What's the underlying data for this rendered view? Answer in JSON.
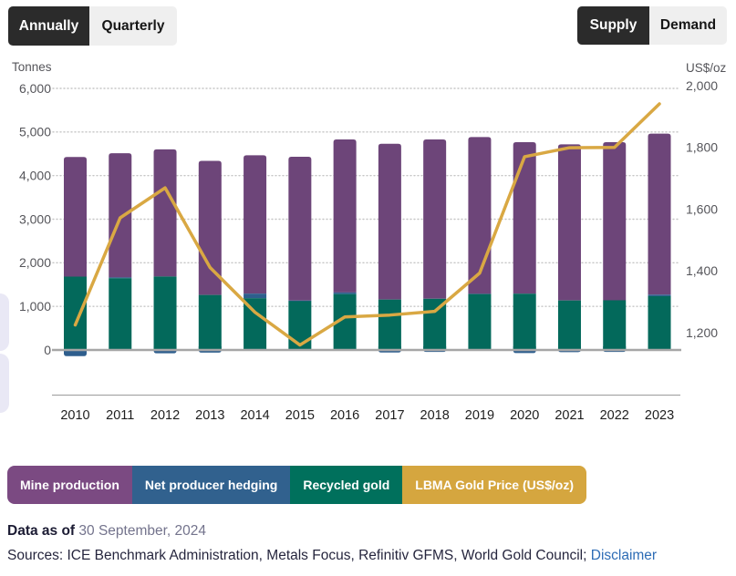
{
  "toggles": {
    "frequency": {
      "options": [
        {
          "label": "Annually",
          "selected": true
        },
        {
          "label": "Quarterly",
          "selected": false
        }
      ]
    },
    "flow": {
      "options": [
        {
          "label": "Supply",
          "selected": true
        },
        {
          "label": "Demand",
          "selected": false
        }
      ]
    }
  },
  "chart_data": {
    "type": "stacked-bar+line",
    "categories": [
      "2010",
      "2011",
      "2012",
      "2013",
      "2014",
      "2015",
      "2016",
      "2017",
      "2018",
      "2019",
      "2020",
      "2021",
      "2022",
      "2023"
    ],
    "series": [
      {
        "name": "Mine production",
        "type": "bar",
        "color": "#6D4579",
        "values": [
          2744,
          2847,
          2916,
          3076,
          3172,
          3297,
          3510,
          3573,
          3655,
          3595,
          3475,
          3581,
          3627,
          3694
        ]
      },
      {
        "name": "Net producer hedging",
        "type": "bar",
        "color": "#2E5E8D",
        "values": [
          -109,
          18,
          -45,
          -28,
          105,
          13,
          38,
          -26,
          -13,
          6,
          -39,
          -18,
          -14,
          35
        ]
      },
      {
        "name": "Recycled gold",
        "type": "bar",
        "color": "#03695B",
        "values": [
          1683,
          1647,
          1685,
          1262,
          1188,
          1121,
          1282,
          1157,
          1175,
          1282,
          1291,
          1136,
          1140,
          1234
        ]
      },
      {
        "name": "LBMA Gold Price (US$/oz)",
        "type": "line",
        "axis": "right",
        "color": "#D9A843",
        "values": [
          1225,
          1572,
          1669,
          1411,
          1266,
          1160,
          1251,
          1257,
          1269,
          1393,
          1770,
          1799,
          1800,
          1941
        ]
      }
    ],
    "left_axis": {
      "title": "Tonnes",
      "min": 0,
      "max": 6000,
      "ticks": [
        0,
        1000,
        2000,
        3000,
        4000,
        5000,
        6000
      ]
    },
    "right_axis": {
      "title": "US$/oz",
      "ticks": [
        1200,
        1400,
        1600,
        1800,
        2000
      ]
    },
    "grid": "dotted-horizontal",
    "legend_position": "bottom"
  },
  "legend": {
    "items": [
      {
        "label": "Mine production",
        "color": "#7B4A82"
      },
      {
        "label": "Net producer hedging",
        "color": "#31618E"
      },
      {
        "label": "Recycled gold",
        "color": "#00705C"
      },
      {
        "label": "LBMA Gold Price (US$/oz)",
        "color": "#D5A63F"
      }
    ]
  },
  "footer": {
    "data_as_of_label": "Data as of",
    "data_as_of_value": "30 September, 2024",
    "sources_text": "Sources: ICE Benchmark Administration, Metals Focus, Refinitiv GFMS, World Gold Council;",
    "disclaimer_label": "Disclaimer"
  }
}
